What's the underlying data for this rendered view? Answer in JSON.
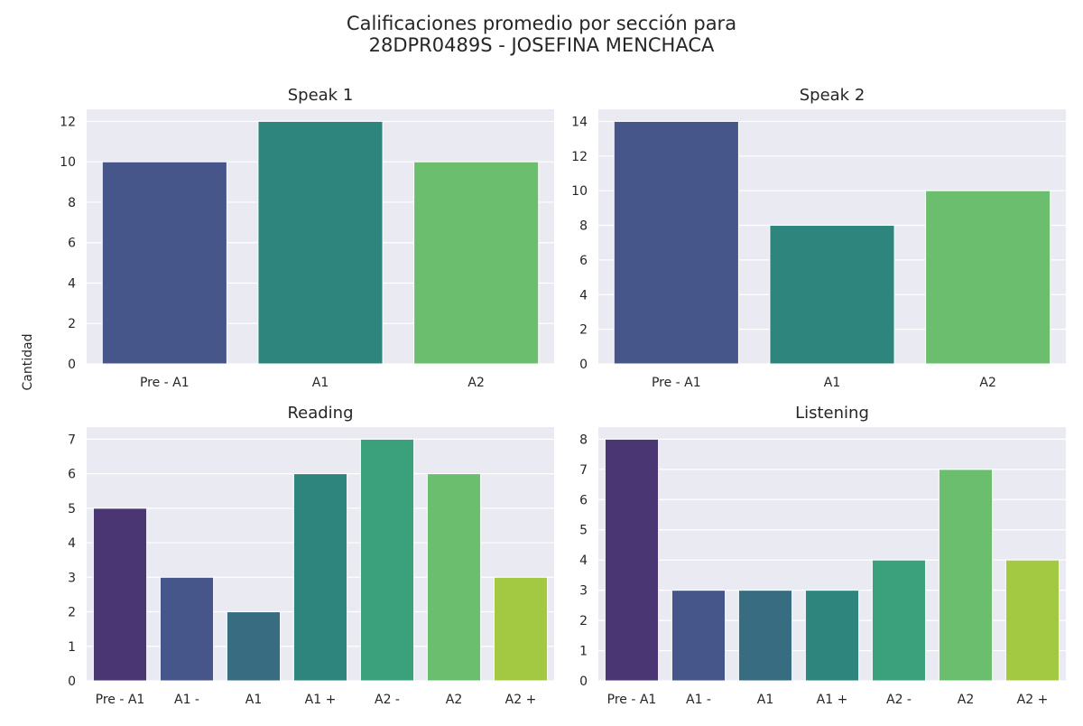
{
  "figure": {
    "title_line1": "Calificaciones promedio por sección para",
    "title_line2": "28DPR0489S - JOSEFINA MENCHACA",
    "ylabel": "Cantidad"
  },
  "colors": {
    "background": "#eaeaf2",
    "grid": "#ffffff",
    "palette_3": [
      "#46568a",
      "#2e857e",
      "#6bbe6d"
    ],
    "palette_7": [
      "#4a3672",
      "#46568a",
      "#386c81",
      "#2e857e",
      "#3ba07c",
      "#6bbe6d",
      "#a3c842"
    ]
  },
  "chart_data": [
    {
      "type": "bar",
      "title": "Speak 1",
      "categories": [
        "Pre - A1",
        "A1",
        "A2"
      ],
      "values": [
        10,
        12,
        10
      ],
      "ylim": [
        0,
        12.6
      ],
      "yticks": [
        0,
        2,
        4,
        6,
        8,
        10,
        12
      ],
      "grid": true,
      "legend": "none"
    },
    {
      "type": "bar",
      "title": "Speak 2",
      "categories": [
        "Pre - A1",
        "A1",
        "A2"
      ],
      "values": [
        14,
        8,
        10
      ],
      "ylim": [
        0,
        14.7
      ],
      "yticks": [
        0,
        2,
        4,
        6,
        8,
        10,
        12,
        14
      ],
      "grid": true,
      "legend": "none"
    },
    {
      "type": "bar",
      "title": "Reading",
      "categories": [
        "Pre - A1",
        "A1 -",
        "A1",
        "A1 +",
        "A2 -",
        "A2",
        "A2 +"
      ],
      "values": [
        5,
        3,
        2,
        6,
        7,
        6,
        3
      ],
      "ylim": [
        0,
        7.35
      ],
      "yticks": [
        0,
        1,
        2,
        3,
        4,
        5,
        6,
        7
      ],
      "grid": true,
      "legend": "none"
    },
    {
      "type": "bar",
      "title": "Listening",
      "categories": [
        "Pre - A1",
        "A1 -",
        "A1",
        "A1 +",
        "A2 -",
        "A2",
        "A2 +"
      ],
      "values": [
        8,
        3,
        3,
        3,
        4,
        7,
        4
      ],
      "ylim": [
        0,
        8.4
      ],
      "yticks": [
        0,
        1,
        2,
        3,
        4,
        5,
        6,
        7,
        8
      ],
      "grid": true,
      "legend": "none"
    }
  ]
}
